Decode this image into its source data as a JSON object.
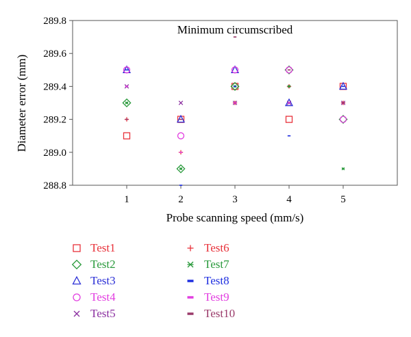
{
  "chart_data": {
    "type": "scatter",
    "title": "Minimum circumscribed",
    "xlabel": "Probe scanning speed (mm/s)",
    "ylabel": "Diameter error (mm)",
    "xlim": [
      0,
      6
    ],
    "ylim": [
      288.8,
      289.8
    ],
    "x_ticks": [
      "1",
      "2",
      "3",
      "4",
      "5"
    ],
    "y_ticks": [
      "288.8",
      "289.0",
      "289.2",
      "289.4",
      "289.6",
      "289.8"
    ],
    "x": [
      1,
      2,
      3,
      4,
      5
    ],
    "series": [
      {
        "name": "Test1",
        "marker": "square",
        "color": "#e8313a",
        "values": [
          289.1,
          289.2,
          289.4,
          289.2,
          289.4
        ]
      },
      {
        "name": "Test2",
        "marker": "diamond",
        "color": "#2a9a3c",
        "values": [
          289.3,
          288.9,
          289.4,
          289.5,
          289.2
        ]
      },
      {
        "name": "Test3",
        "marker": "triangle",
        "color": "#2b2fd6",
        "values": [
          289.5,
          289.2,
          289.5,
          289.3,
          289.4
        ]
      },
      {
        "name": "Test4",
        "marker": "circle",
        "color": "#e23ee0",
        "values": [
          289.5,
          289.1,
          289.5,
          289.5,
          289.2
        ]
      },
      {
        "name": "Test5",
        "marker": "x",
        "color": "#8b2fa0",
        "values": [
          289.4,
          289.3,
          289.3,
          289.3,
          289.3
        ]
      },
      {
        "name": "Test6",
        "marker": "plus",
        "color": "#e8313a",
        "values": [
          289.2,
          289.0,
          289.3,
          289.4,
          289.3
        ]
      },
      {
        "name": "Test7",
        "marker": "star",
        "color": "#2a9a3c",
        "values": [
          289.3,
          288.9,
          289.4,
          289.4,
          288.9
        ]
      },
      {
        "name": "Test8",
        "marker": "dash",
        "color": "#1f2fe0",
        "values": [
          289.5,
          288.8,
          289.4,
          289.1,
          289.4
        ]
      },
      {
        "name": "Test9",
        "marker": "dash",
        "color": "#e23ee0",
        "values": [
          289.4,
          289.0,
          289.3,
          289.3,
          289.3
        ]
      },
      {
        "name": "Test10",
        "marker": "dash",
        "color": "#9a3a6a",
        "values": [
          289.2,
          289.2,
          289.7,
          289.5,
          289.3
        ]
      }
    ],
    "grid": false,
    "legend_position": "bottom-left, two columns"
  }
}
